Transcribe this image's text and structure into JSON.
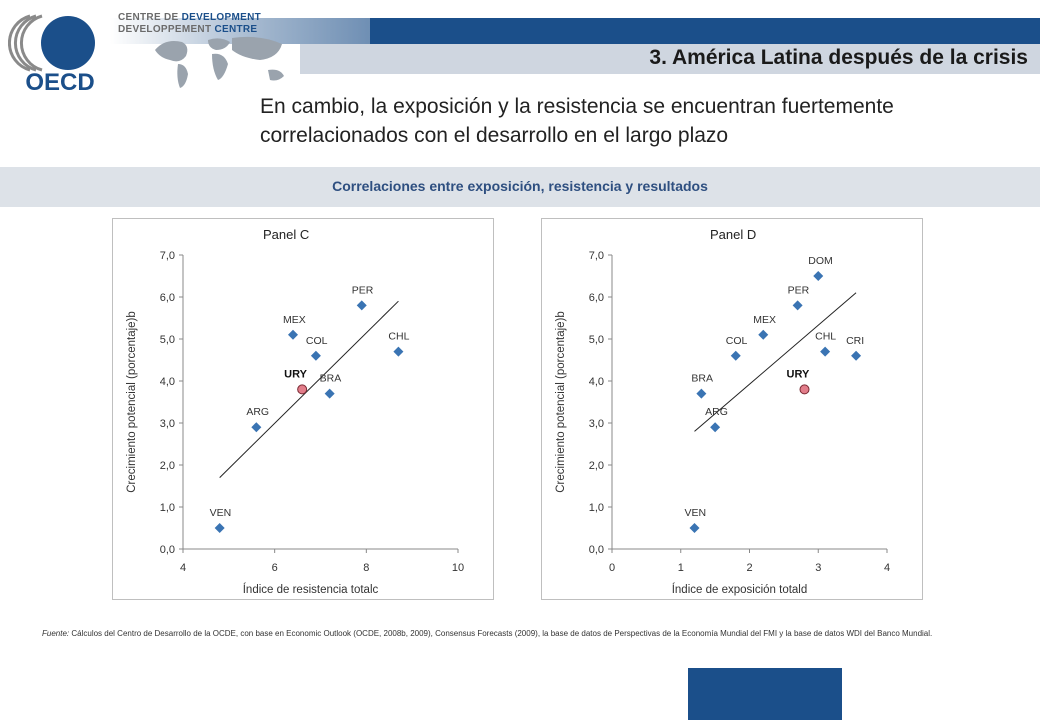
{
  "header": {
    "logo_text": "OECD",
    "centre_line1a": "CENTRE DE",
    "centre_line1b": "DEVELOPMENT",
    "centre_line2a": "DEVELOPPEMENT",
    "centre_line2b": "CENTRE",
    "section_title": "3. América Latina después de la crisis",
    "headline": "En cambio, la exposición y la resistencia se encuentran fuertemente correlacionados con el desarrollo en el largo plazo",
    "subtitle": "Correlaciones entre exposición, resistencia y resultados",
    "colors": {
      "brand_dark": "#1b4f8a",
      "brand_light": "#cfd6e0",
      "point": "#3a74b3",
      "highlight": "#e27d8a"
    }
  },
  "chart_data": [
    {
      "type": "scatter",
      "title": "Panel C",
      "xlabel": "Índice de resistencia totalc",
      "ylabel": "Crecimiento potencial (porcentaje)b",
      "xlim": [
        4,
        10
      ],
      "ylim": [
        0,
        7
      ],
      "xticks": [
        "4",
        "6",
        "8",
        "10"
      ],
      "yticks": [
        "0,0",
        "1,0",
        "2,0",
        "3,0",
        "4,0",
        "5,0",
        "6,0",
        "7,0"
      ],
      "points": [
        {
          "label": "VEN",
          "x": 4.8,
          "y": 0.5
        },
        {
          "label": "ARG",
          "x": 5.6,
          "y": 2.9
        },
        {
          "label": "MEX",
          "x": 6.4,
          "y": 5.1
        },
        {
          "label": "COL",
          "x": 6.9,
          "y": 4.6
        },
        {
          "label": "BRA",
          "x": 7.2,
          "y": 3.7
        },
        {
          "label": "PER",
          "x": 7.9,
          "y": 5.8
        },
        {
          "label": "CHL",
          "x": 8.7,
          "y": 4.7
        }
      ],
      "highlight": {
        "label": "URY",
        "x": 6.6,
        "y": 3.8
      },
      "trendline": {
        "x1": 4.8,
        "y1": 1.7,
        "x2": 8.7,
        "y2": 5.9
      },
      "grid": false
    },
    {
      "type": "scatter",
      "title": "Panel D",
      "xlabel": "Índice de exposición totald",
      "ylabel": "Crecimiento potencial (porcentaje)b",
      "xlim": [
        0,
        4
      ],
      "ylim": [
        0,
        7
      ],
      "xticks": [
        "0",
        "1",
        "2",
        "3",
        "4"
      ],
      "yticks": [
        "0,0",
        "1,0",
        "2,0",
        "3,0",
        "4,0",
        "5,0",
        "6,0",
        "7,0"
      ],
      "points": [
        {
          "label": "VEN",
          "x": 1.2,
          "y": 0.5
        },
        {
          "label": "BRA",
          "x": 1.3,
          "y": 3.7
        },
        {
          "label": "ARG",
          "x": 1.5,
          "y": 2.9
        },
        {
          "label": "COL",
          "x": 1.8,
          "y": 4.6
        },
        {
          "label": "MEX",
          "x": 2.2,
          "y": 5.1
        },
        {
          "label": "PER",
          "x": 2.7,
          "y": 5.8
        },
        {
          "label": "DOM",
          "x": 3.0,
          "y": 6.5
        },
        {
          "label": "CHL",
          "x": 3.1,
          "y": 4.7
        },
        {
          "label": "CRI",
          "x": 3.55,
          "y": 4.6
        }
      ],
      "highlight": {
        "label": "URY",
        "x": 2.8,
        "y": 3.8
      },
      "trendline": {
        "x1": 1.2,
        "y1": 2.8,
        "x2": 3.55,
        "y2": 6.1
      },
      "grid": false
    }
  ],
  "footnote": {
    "source_label": "Fuente:",
    "text": " Cálculos del Centro de Desarrollo de la OCDE, con base en Economic Outlook (OCDE, 2008b, 2009), Consensus Forecasts (2009), la base de datos de Perspectivas de la Economía Mundial del FMI y la base de datos WDI del Banco Mundial."
  }
}
